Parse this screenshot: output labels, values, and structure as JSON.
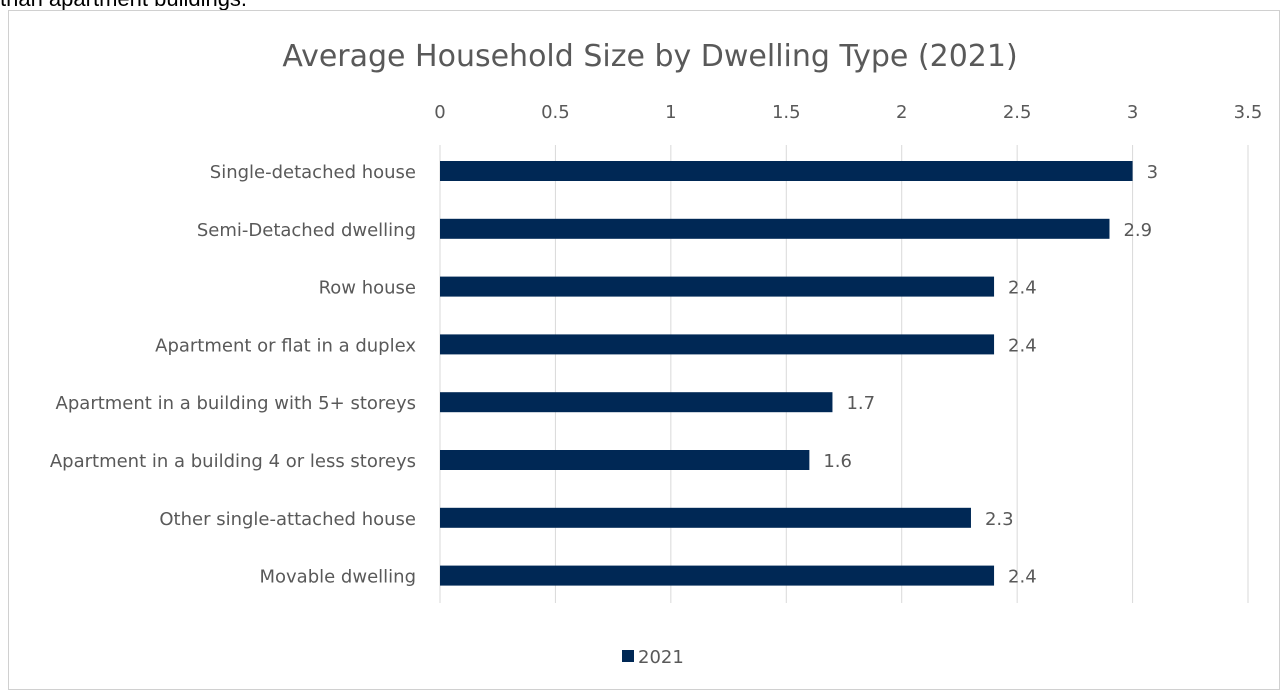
{
  "page": {
    "intro_text": "than apartment buildings."
  },
  "chart_data": {
    "type": "bar",
    "orientation": "horizontal",
    "title": "Average Household Size by Dwelling Type (2021)",
    "categories": [
      "Single-detached house",
      "Semi-Detached dwelling",
      "Row house",
      "Apartment or flat in a duplex",
      "Apartment in a building with 5+ storeys",
      "Apartment in a building 4 or less storeys",
      "Other single-attached house",
      "Movable dwelling"
    ],
    "series": [
      {
        "name": "2021",
        "values": [
          3,
          2.9,
          2.4,
          2.4,
          1.7,
          1.6,
          2.3,
          2.4
        ],
        "color": "#002855"
      }
    ],
    "data_labels": [
      "3",
      "2.9",
      "2.4",
      "2.4",
      "1.7",
      "1.6",
      "2.3",
      "2.4"
    ],
    "xlim": [
      0,
      3.5
    ],
    "x_ticks": [
      0,
      0.5,
      1,
      1.5,
      2,
      2.5,
      3,
      3.5
    ],
    "x_tick_labels": [
      "0",
      "0.5",
      "1",
      "1.5",
      "2",
      "2.5",
      "3",
      "3.5"
    ],
    "x_axis_position": "top",
    "grid": true,
    "legend_position": "bottom",
    "colors": {
      "bar": "#002855",
      "grid": "#d9d9d9",
      "text": "#595959"
    }
  }
}
